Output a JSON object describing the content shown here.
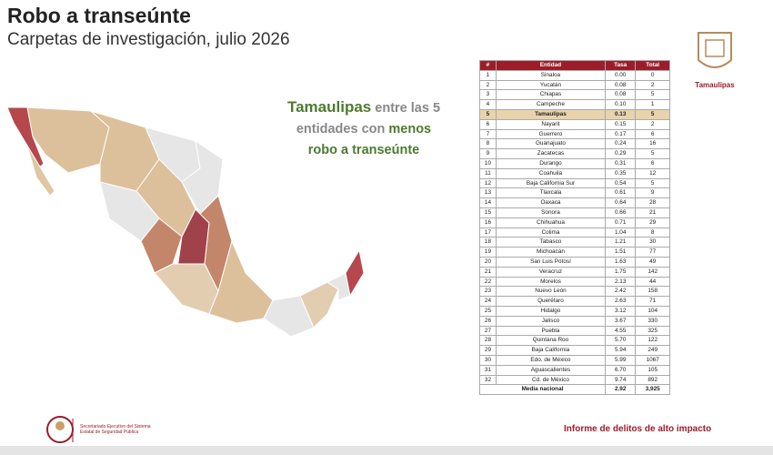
{
  "header": {
    "title": "Robo a transeúnte",
    "subtitle": "Carpetas de investigación, julio 2026"
  },
  "logo": {
    "label": "Tamaulipas"
  },
  "callout": {
    "state": "Tamaulipas",
    "text_1": "entre las 5",
    "text_2": "entidades con",
    "emphasis": "menos",
    "text_3": "robo a transeúnte"
  },
  "table": {
    "columns": [
      "#",
      "Entidad",
      "Tasa",
      "Total"
    ],
    "rows": [
      [
        "1",
        "Sinaloa",
        "0.00",
        "0"
      ],
      [
        "2",
        "Yucatán",
        "0.08",
        "2"
      ],
      [
        "3",
        "Chiapas",
        "0.08",
        "5"
      ],
      [
        "4",
        "Campeche",
        "0.10",
        "1"
      ],
      [
        "5",
        "Tamaulipas",
        "0.13",
        "5"
      ],
      [
        "6",
        "Nayarit",
        "0.15",
        "2"
      ],
      [
        "7",
        "Guerrero",
        "0.17",
        "6"
      ],
      [
        "8",
        "Guanajuato",
        "0.24",
        "16"
      ],
      [
        "9",
        "Zacatecas",
        "0.29",
        "5"
      ],
      [
        "10",
        "Durango",
        "0.31",
        "6"
      ],
      [
        "11",
        "Coahuila",
        "0.35",
        "12"
      ],
      [
        "12",
        "Baja California Sur",
        "0.54",
        "5"
      ],
      [
        "13",
        "Tlaxcala",
        "0.61",
        "9"
      ],
      [
        "14",
        "Oaxaca",
        "0.64",
        "28"
      ],
      [
        "15",
        "Sonora",
        "0.66",
        "21"
      ],
      [
        "16",
        "Chihuahua",
        "0.71",
        "29"
      ],
      [
        "17",
        "Colima",
        "1.04",
        "8"
      ],
      [
        "18",
        "Tabasco",
        "1.21",
        "30"
      ],
      [
        "19",
        "Michoacán",
        "1.51",
        "77"
      ],
      [
        "20",
        "San Luis Potosí",
        "1.63",
        "49"
      ],
      [
        "21",
        "Veracruz",
        "1.75",
        "142"
      ],
      [
        "22",
        "Morelos",
        "2.13",
        "44"
      ],
      [
        "23",
        "Nuevo León",
        "2.42",
        "158"
      ],
      [
        "24",
        "Querétaro",
        "2.63",
        "71"
      ],
      [
        "25",
        "Hidalgo",
        "3.12",
        "104"
      ],
      [
        "26",
        "Jalisco",
        "3.67",
        "330"
      ],
      [
        "27",
        "Puebla",
        "4.55",
        "325"
      ],
      [
        "28",
        "Quintana Roo",
        "5.70",
        "122"
      ],
      [
        "29",
        "Baja California",
        "5.94",
        "249"
      ],
      [
        "30",
        "Edo. de México",
        "5.99",
        "1067"
      ],
      [
        "31",
        "Aguascalientes",
        "6.70",
        "105"
      ],
      [
        "32",
        "Cd. de México",
        "9.74",
        "892"
      ]
    ],
    "footer": [
      "Media nacional",
      "2.92",
      "3,925"
    ]
  },
  "footer": {
    "institution": "Secretariado Ejecutivo del Sistema Estatal de Seguridad Pública",
    "report": "Informe de delitos de alto impacto"
  }
}
